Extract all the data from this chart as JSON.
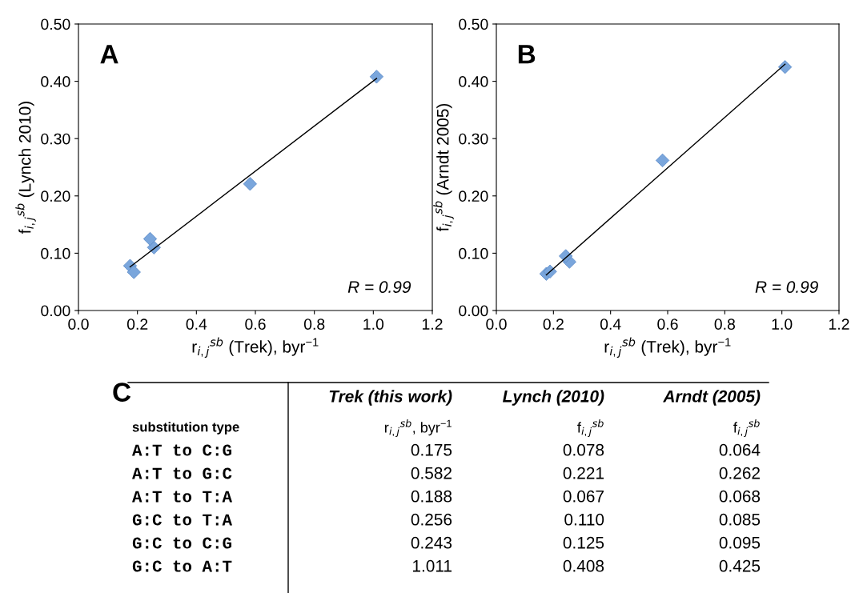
{
  "chart_data": [
    {
      "type": "scatter",
      "title": "A",
      "xlabel": "r$_{i,j}$$^{sb}$ (Trek), byr$^{−1}$",
      "ylabel": "f$_{i,j}$$^{sb}$ (Lynch 2010)",
      "grid": false,
      "xlim": [
        0,
        1.2
      ],
      "xticks": [
        {
          "value": 0,
          "label": "0.0"
        },
        {
          "value": 0.2,
          "label": "0.2"
        },
        {
          "value": 0.4,
          "label": "0.4"
        },
        {
          "value": 0.6,
          "label": "0.6"
        },
        {
          "value": 0.8,
          "label": "0.8"
        },
        {
          "value": 1.0,
          "label": "1.0"
        },
        {
          "value": 1.2,
          "label": "1.2"
        }
      ],
      "ylim": [
        0,
        0.5
      ],
      "yticks": [
        {
          "value": 0,
          "label": "0.00"
        },
        {
          "value": 0.1,
          "label": "0.10"
        },
        {
          "value": 0.2,
          "label": "0.20"
        },
        {
          "value": 0.3,
          "label": "0.30"
        },
        {
          "value": 0.4,
          "label": "0.40"
        },
        {
          "value": 0.5,
          "label": "0.50"
        }
      ],
      "series": [
        {
          "type": "scatter",
          "marker": "diamond",
          "color": "#7aa6dc",
          "x": [
            0.175,
            0.582,
            0.188,
            0.256,
            0.243,
            1.011
          ],
          "values": [
            0.078,
            0.221,
            0.067,
            0.11,
            0.125,
            0.408
          ]
        },
        {
          "type": "line",
          "color": "#000000",
          "x": [
            0.175,
            1.011
          ],
          "values": [
            0.076,
            0.405
          ]
        }
      ],
      "annotations": [
        "R = 0.99"
      ]
    },
    {
      "type": "scatter",
      "title": "B",
      "xlabel": "r$_{i,j}$$^{sb}$ (Trek), byr$^{−1}$",
      "ylabel": "f$_{i,j}$$^{sb}$ (Arndt 2005)",
      "grid": false,
      "xlim": [
        0,
        1.2
      ],
      "xticks": [
        {
          "value": 0,
          "label": "0.0"
        },
        {
          "value": 0.2,
          "label": "0.2"
        },
        {
          "value": 0.4,
          "label": "0.4"
        },
        {
          "value": 0.6,
          "label": "0.6"
        },
        {
          "value": 0.8,
          "label": "0.8"
        },
        {
          "value": 1.0,
          "label": "1.0"
        },
        {
          "value": 1.2,
          "label": "1.2"
        }
      ],
      "ylim": [
        0,
        0.5
      ],
      "yticks": [
        {
          "value": 0,
          "label": "0.00"
        },
        {
          "value": 0.1,
          "label": "0.10"
        },
        {
          "value": 0.2,
          "label": "0.20"
        },
        {
          "value": 0.3,
          "label": "0.30"
        },
        {
          "value": 0.4,
          "label": "0.40"
        },
        {
          "value": 0.5,
          "label": "0.50"
        }
      ],
      "series": [
        {
          "type": "scatter",
          "marker": "diamond",
          "color": "#7aa6dc",
          "x": [
            0.175,
            0.582,
            0.188,
            0.256,
            0.243,
            1.011
          ],
          "values": [
            0.064,
            0.262,
            0.068,
            0.085,
            0.095,
            0.425
          ]
        },
        {
          "type": "line",
          "color": "#000000",
          "x": [
            0.175,
            1.011
          ],
          "values": [
            0.062,
            0.43
          ]
        }
      ],
      "annotations": [
        "R = 0.99"
      ]
    },
    {
      "type": "other",
      "title": "C",
      "categories": [
        null,
        "Trek (this work)",
        "Lynch (2010)",
        "Arndt (2005)"
      ],
      "y_categories": [
        "substitution type",
        "A:T to C:G",
        "A:T to G:C",
        "A:T to T:A",
        "G:C to T:A",
        "G:C to C:G",
        "G:C to A:T"
      ],
      "cell_labels": [
        [
          "r$_{i,j}$$^{sb}$, byr$^{−1}$",
          "f$_{i,j}$$^{sb}$",
          "f$_{i,j}$$^{sb}$"
        ],
        [
          "0.175",
          "0.078",
          "0.064"
        ],
        [
          "0.582",
          "0.221",
          "0.262"
        ],
        [
          "0.188",
          "0.067",
          "0.068"
        ],
        [
          "0.256",
          "0.110",
          "0.085"
        ],
        [
          "0.243",
          "0.125",
          "0.095"
        ],
        [
          "1.011",
          "0.408",
          "0.425"
        ]
      ]
    }
  ]
}
